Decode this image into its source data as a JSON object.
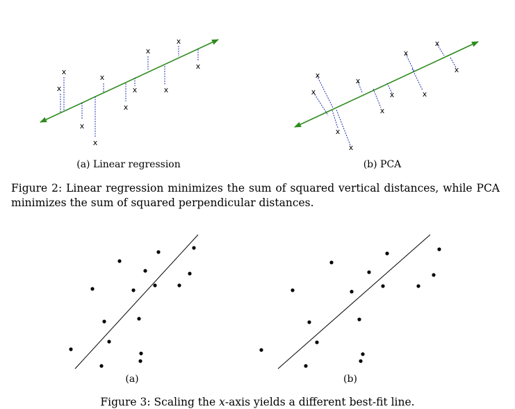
{
  "figure2": {
    "subfig_a_caption": "(a) Linear regression",
    "subfig_b_caption": "(b) PCA",
    "caption": "Figure 2: Linear regression minimizes the sum of squared vertical distances, while PCA minimizes the sum of squared perpendicular distances.",
    "marker": "x",
    "colors": {
      "line": "#2e8b1e",
      "residual": "#1f2fae",
      "marker": "#000000"
    }
  },
  "figure3": {
    "subfig_a_caption": "(a)",
    "subfig_b_caption": "(b)",
    "caption_prefix": "Figure 3: Scaling the ",
    "caption_var": "x",
    "caption_suffix": "-axis yields a different best-fit line."
  }
}
